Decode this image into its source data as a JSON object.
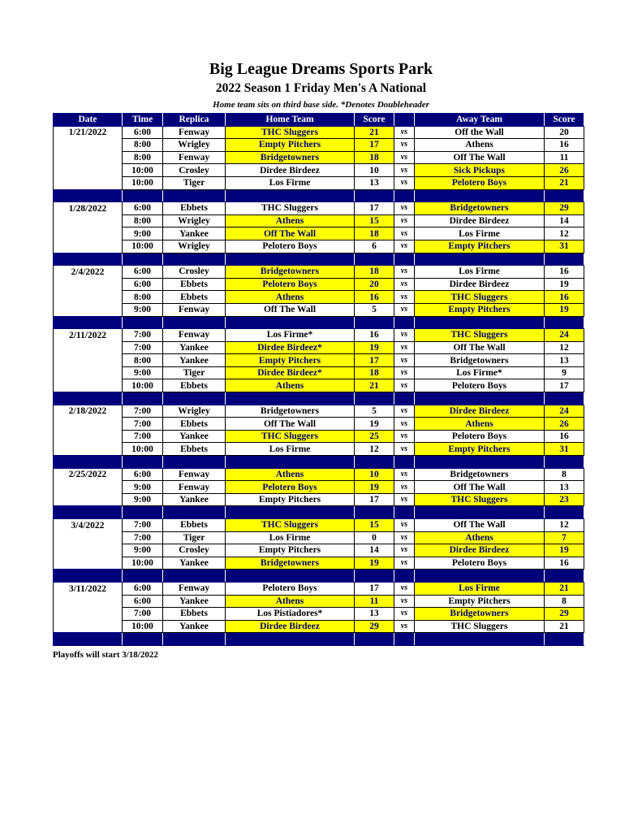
{
  "title": "Big League Dreams Sports Park",
  "subtitle": "2022 Season 1 Friday Men's A National",
  "note": "Home team sits on third base side.  *Denotes Doubleheader",
  "footer": "Playoffs will start 3/18/2022",
  "colors": {
    "header": "#00007a",
    "winner_highlight": "#ffff00"
  },
  "columns": [
    "Date",
    "Time",
    "Replica",
    "Home Team",
    "Score",
    "",
    "Away Team",
    "Score"
  ],
  "vs_label": "vs",
  "weeks": [
    {
      "date": "1/21/2022",
      "games": [
        [
          "6:00",
          "Fenway",
          "THC Sluggers",
          21,
          "Off the Wall",
          20
        ],
        [
          "8:00",
          "Wrigley",
          "Empty Pitchers",
          17,
          "Athens",
          16
        ],
        [
          "8:00",
          "Fenway",
          "Bridgetowners",
          18,
          "Off The Wall",
          11
        ],
        [
          "10:00",
          "Crosley",
          "Dirdee Birdeez",
          10,
          "Sick Pickups",
          26
        ],
        [
          "10:00",
          "Tiger",
          "Los Firme",
          13,
          "Pelotero Boys",
          21
        ]
      ]
    },
    {
      "date": "1/28/2022",
      "games": [
        [
          "6:00",
          "Ebbets",
          "THC Sluggers",
          17,
          "Bridgetowners",
          29
        ],
        [
          "8:00",
          "Wrigley",
          "Athens",
          15,
          "Dirdee Birdeez",
          14
        ],
        [
          "9:00",
          "Yankee",
          "Off The Wall",
          18,
          "Los Firme",
          12
        ],
        [
          "10:00",
          "Wrigley",
          "Pelotero Boys",
          6,
          "Empty Pitchers",
          31
        ]
      ]
    },
    {
      "date": "2/4/2022",
      "games": [
        [
          "6:00",
          "Crosley",
          "Bridgetowners",
          18,
          "Los Firme",
          16
        ],
        [
          "6:00",
          "Ebbets",
          "Pelotero Boys",
          20,
          "Dirdee Birdeez",
          19
        ],
        [
          "8:00",
          "Ebbets",
          "Athens",
          16,
          "THC Sluggers",
          16
        ],
        [
          "9:00",
          "Fenway",
          "Off The Wall",
          5,
          "Empty Pitchers",
          19
        ]
      ]
    },
    {
      "date": "2/11/2022",
      "games": [
        [
          "7:00",
          "Fenway",
          "Los Firme*",
          16,
          "THC Sluggers",
          24
        ],
        [
          "7:00",
          "Yankee",
          "Dirdee Birdeez*",
          19,
          "Off The Wall",
          12
        ],
        [
          "8:00",
          "Yankee",
          "Empty Pitchers",
          17,
          "Bridgetowners",
          13
        ],
        [
          "9:00",
          "Tiger",
          "Dirdee Birdeez*",
          18,
          "Los Firme*",
          9
        ],
        [
          "10:00",
          "Ebbets",
          "Athens",
          21,
          "Pelotero Boys",
          17
        ]
      ]
    },
    {
      "date": "2/18/2022",
      "games": [
        [
          "7:00",
          "Wrigley",
          "Bridgetowners",
          5,
          "Dirdee Birdeez",
          24
        ],
        [
          "7:00",
          "Ebbets",
          "Off The Wall",
          19,
          "Athens",
          26
        ],
        [
          "7:00",
          "Yankee",
          "THC Sluggers",
          25,
          "Pelotero Boys",
          16
        ],
        [
          "10:00",
          "Ebbets",
          "Los Firme",
          12,
          "Empty Pitchers",
          31
        ]
      ]
    },
    {
      "date": "2/25/2022",
      "games": [
        [
          "6:00",
          "Fenway",
          "Athens",
          10,
          "Bridgetowners",
          8
        ],
        [
          "9:00",
          "Fenway",
          "Pelotero Boys",
          19,
          "Off The Wall",
          13
        ],
        [
          "9:00",
          "Yankee",
          "Empty Pitchers",
          17,
          "THC Sluggers",
          23
        ]
      ]
    },
    {
      "date": "3/4/2022",
      "games": [
        [
          "7:00",
          "Ebbets",
          "THC Sluggers",
          15,
          "Off The Wall",
          12
        ],
        [
          "7:00",
          "Tiger",
          "Los Firme",
          0,
          "Athens",
          7
        ],
        [
          "9:00",
          "Crosley",
          "Empty Pitchers",
          14,
          "Dirdee Birdeez",
          19
        ],
        [
          "10:00",
          "Yankee",
          "Bridgetowners",
          19,
          "Pelotero Boys",
          16
        ]
      ]
    },
    {
      "date": "3/11/2022",
      "games": [
        [
          "6:00",
          "Fenway",
          "Pelotero Boys",
          17,
          "Los Firme",
          21
        ],
        [
          "6:00",
          "Yankee",
          "Athens",
          11,
          "Empty Pitchers",
          8
        ],
        [
          "7:00",
          "Ebbets",
          "Los Pistiadores*",
          13,
          "Bridgetowners",
          29
        ],
        [
          "10:00",
          "Yankee",
          "Dirdee Birdeez",
          29,
          "THC Sluggers",
          21
        ]
      ]
    }
  ]
}
